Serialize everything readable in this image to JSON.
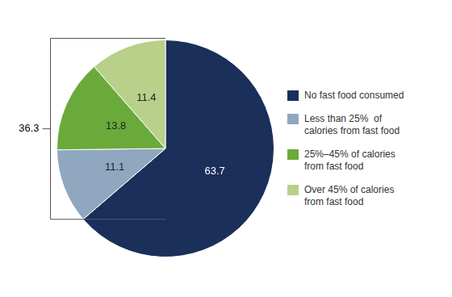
{
  "chart_data": {
    "type": "pie",
    "categories": [
      "No fast food consumed",
      "Less than 25%  of\ncalories from fast food",
      "25%–45% of calories\nfrom fast food",
      "Over 45% of calories\nfrom fast food"
    ],
    "values": [
      63.7,
      11.1,
      13.8,
      11.4
    ],
    "colors": [
      "#1a2f5a",
      "#8fa8bf",
      "#6aaa3a",
      "#b8d08a"
    ],
    "data_labels": true,
    "legend": "right",
    "annotation": "36.3"
  }
}
